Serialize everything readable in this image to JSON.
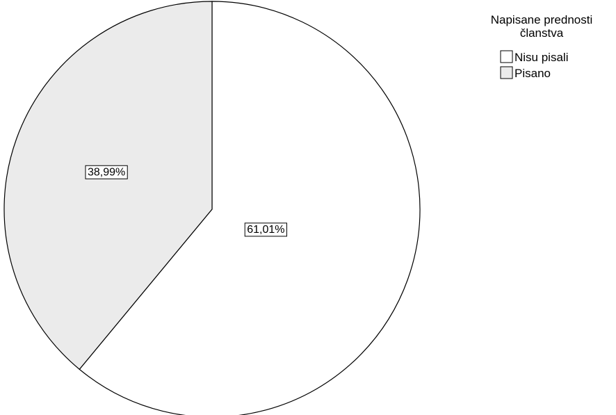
{
  "chart_data": {
    "type": "pie",
    "legend_title": "Napisane prednosti članstva",
    "legend_title_lines": [
      "Napisane prednosti",
      "članstva"
    ],
    "legend_position": "top-right",
    "start": "top",
    "direction": "clockwise",
    "slices": [
      {
        "name": "Nisu pisali",
        "value": 61.01,
        "label": "61,01%",
        "color": "#ffffff"
      },
      {
        "name": "Pisano",
        "value": 38.99,
        "label": "38,99%",
        "color": "#ebebeb"
      }
    ],
    "stroke_color": "#000000"
  }
}
